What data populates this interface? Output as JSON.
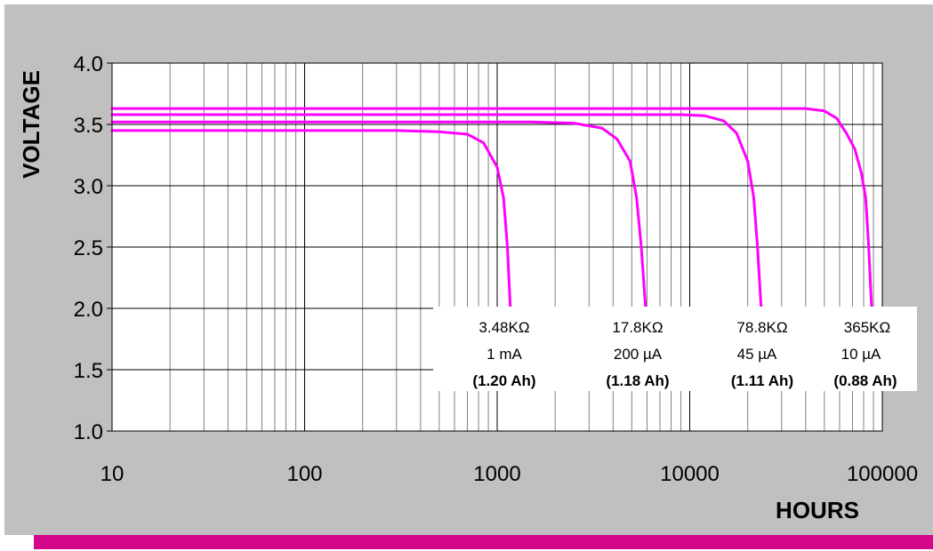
{
  "chart_data": {
    "type": "line",
    "xlabel": "HOURS",
    "ylabel": "VOLTAGE",
    "x_scale": "log",
    "xlim": [
      10,
      100000
    ],
    "ylim": [
      1.0,
      4.0
    ],
    "x_ticks": [
      "10",
      "100",
      "1000",
      "10000",
      "100000"
    ],
    "y_ticks": [
      "1.0",
      "1.5",
      "2.0",
      "2.5",
      "3.0",
      "3.5",
      "4.0"
    ],
    "grid": true,
    "series": [
      {
        "color": "#ff00ff",
        "points": [
          [
            10,
            3.45
          ],
          [
            300,
            3.45
          ],
          [
            500,
            3.44
          ],
          [
            700,
            3.42
          ],
          [
            850,
            3.35
          ],
          [
            1000,
            3.15
          ],
          [
            1080,
            2.9
          ],
          [
            1130,
            2.5
          ],
          [
            1170,
            2.0
          ]
        ]
      },
      {
        "color": "#ff00ff",
        "points": [
          [
            10,
            3.52
          ],
          [
            1500,
            3.52
          ],
          [
            2500,
            3.51
          ],
          [
            3500,
            3.47
          ],
          [
            4200,
            3.38
          ],
          [
            4900,
            3.2
          ],
          [
            5300,
            2.9
          ],
          [
            5600,
            2.5
          ],
          [
            5900,
            2.0
          ]
        ]
      },
      {
        "color": "#ff00ff",
        "points": [
          [
            10,
            3.58
          ],
          [
            9000,
            3.58
          ],
          [
            12000,
            3.57
          ],
          [
            15000,
            3.53
          ],
          [
            17500,
            3.43
          ],
          [
            20000,
            3.2
          ],
          [
            21500,
            2.9
          ],
          [
            22500,
            2.5
          ],
          [
            23500,
            2.0
          ]
        ]
      },
      {
        "color": "#ff00ff",
        "points": [
          [
            10,
            3.63
          ],
          [
            40000,
            3.63
          ],
          [
            50000,
            3.61
          ],
          [
            58000,
            3.55
          ],
          [
            65000,
            3.43
          ],
          [
            72000,
            3.3
          ],
          [
            78000,
            3.1
          ],
          [
            82000,
            2.9
          ],
          [
            85000,
            2.5
          ],
          [
            88000,
            2.0
          ]
        ]
      }
    ],
    "annotations": [
      {
        "resistance": "3.48KΩ",
        "current": "1 mA",
        "capacity": "(1.20 Ah)"
      },
      {
        "resistance": "17.8KΩ",
        "current": "200 µA",
        "capacity": "(1.18 Ah)"
      },
      {
        "resistance": "78.8KΩ",
        "current": "45 µA",
        "capacity": "(1.11 Ah)"
      },
      {
        "resistance": "365KΩ",
        "current": "10 µA",
        "capacity": "(0.88 Ah)"
      }
    ]
  },
  "colors": {
    "background": "#c0c0c0",
    "plot_background": "#ffffff",
    "curve": "#ff00ff",
    "bottom_bar": "#d4078b"
  }
}
